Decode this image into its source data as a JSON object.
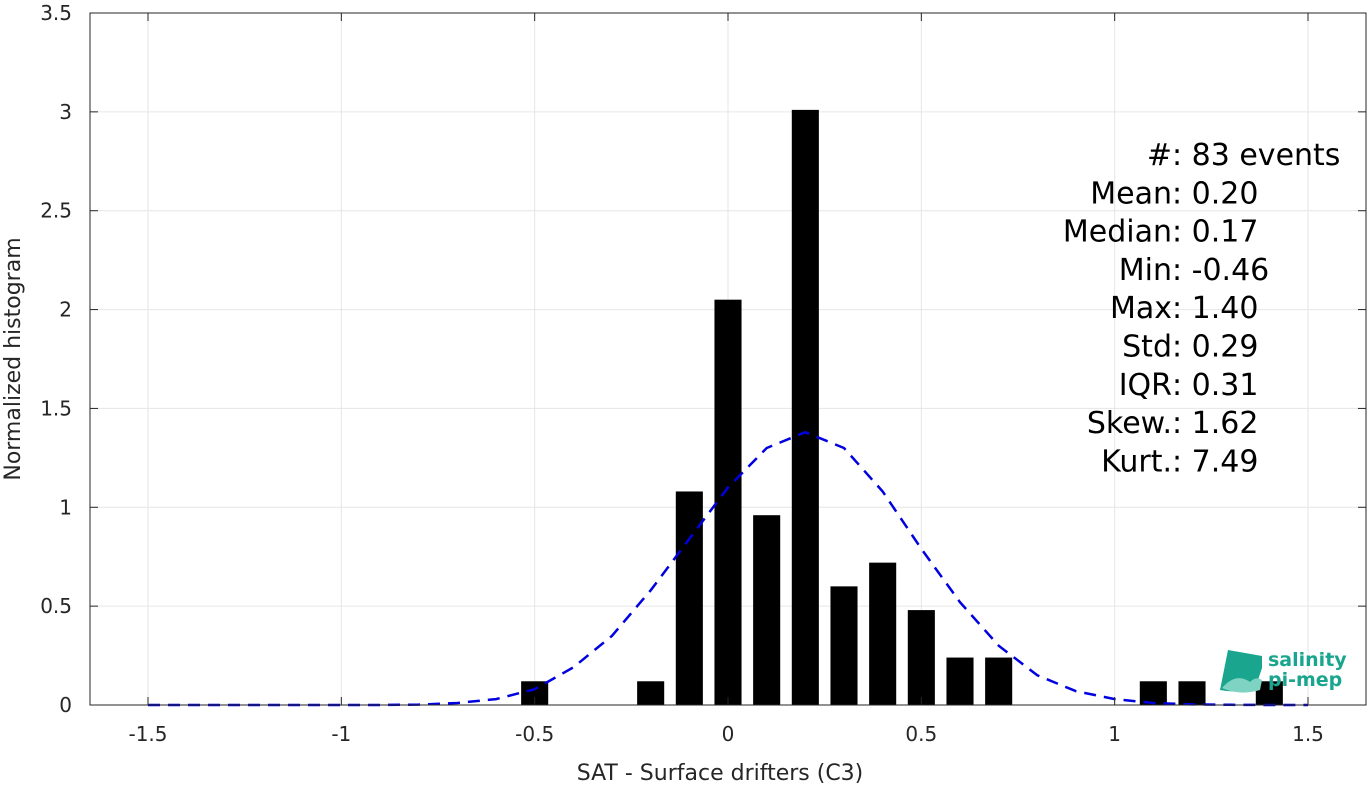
{
  "chart_data": {
    "type": "bar",
    "xlabel": "SAT - Surface drifters (C3)",
    "ylabel": "Normalized histogram",
    "xlim": [
      -1.65,
      1.65
    ],
    "ylim": [
      0,
      3.5
    ],
    "xticks": [
      -1.5,
      -1,
      -0.5,
      0,
      0.5,
      1,
      1.5
    ],
    "xtick_labels": [
      "-1.5",
      "-1",
      "-0.5",
      "0",
      "0.5",
      "1",
      "1.5"
    ],
    "yticks": [
      0,
      0.5,
      1,
      1.5,
      2,
      2.5,
      3,
      3.5
    ],
    "ytick_labels": [
      "0",
      "0.5",
      "1",
      "1.5",
      "2",
      "2.5",
      "3",
      "3.5"
    ],
    "grid": true,
    "bar_color": "#000000",
    "bar_width": 0.07,
    "bars": {
      "x": [
        -0.5,
        -0.2,
        -0.1,
        0.0,
        0.1,
        0.2,
        0.3,
        0.4,
        0.5,
        0.6,
        0.7,
        1.1,
        1.2,
        1.4
      ],
      "values": [
        0.12,
        0.12,
        1.08,
        2.05,
        0.96,
        3.01,
        0.6,
        0.72,
        0.48,
        0.24,
        0.24,
        0.12,
        0.12,
        0.12
      ]
    },
    "fit_curve": {
      "style": "dashed",
      "color": "#0000e0",
      "x": [
        -1.5,
        -1.4,
        -1.3,
        -1.2,
        -1.1,
        -1.0,
        -0.9,
        -0.8,
        -0.7,
        -0.6,
        -0.5,
        -0.4,
        -0.3,
        -0.2,
        -0.1,
        0.0,
        0.1,
        0.2,
        0.3,
        0.4,
        0.5,
        0.6,
        0.7,
        0.8,
        0.9,
        1.0,
        1.1,
        1.2,
        1.3,
        1.4,
        1.5
      ],
      "y": [
        0.0,
        0.0,
        0.0,
        0.0,
        0.0,
        0.0,
        0.0,
        0.002,
        0.01,
        0.03,
        0.08,
        0.19,
        0.35,
        0.58,
        0.84,
        1.1,
        1.3,
        1.38,
        1.3,
        1.08,
        0.79,
        0.52,
        0.3,
        0.15,
        0.07,
        0.03,
        0.01,
        0.003,
        0.001,
        0.0,
        0.0
      ]
    },
    "annotations": [
      {
        "label": "#  ",
        "value": ": 83 events"
      },
      {
        "label": "Mean ",
        "value": ": 0.20"
      },
      {
        "label": "Median ",
        "value": ": 0.17"
      },
      {
        "label": "Min ",
        "value": ": -0.46"
      },
      {
        "label": "Max ",
        "value": ": 1.40"
      },
      {
        "label": "Std ",
        "value": ": 0.29"
      },
      {
        "label": "IQR ",
        "value": ": 0.31"
      },
      {
        "label": "Skew. ",
        "value": ": 1.62"
      },
      {
        "label": "Kurt. ",
        "value": ": 7.49"
      }
    ]
  },
  "logo": {
    "line1": "salinity",
    "line2": "pi-mep",
    "color": "#1aa58f"
  }
}
